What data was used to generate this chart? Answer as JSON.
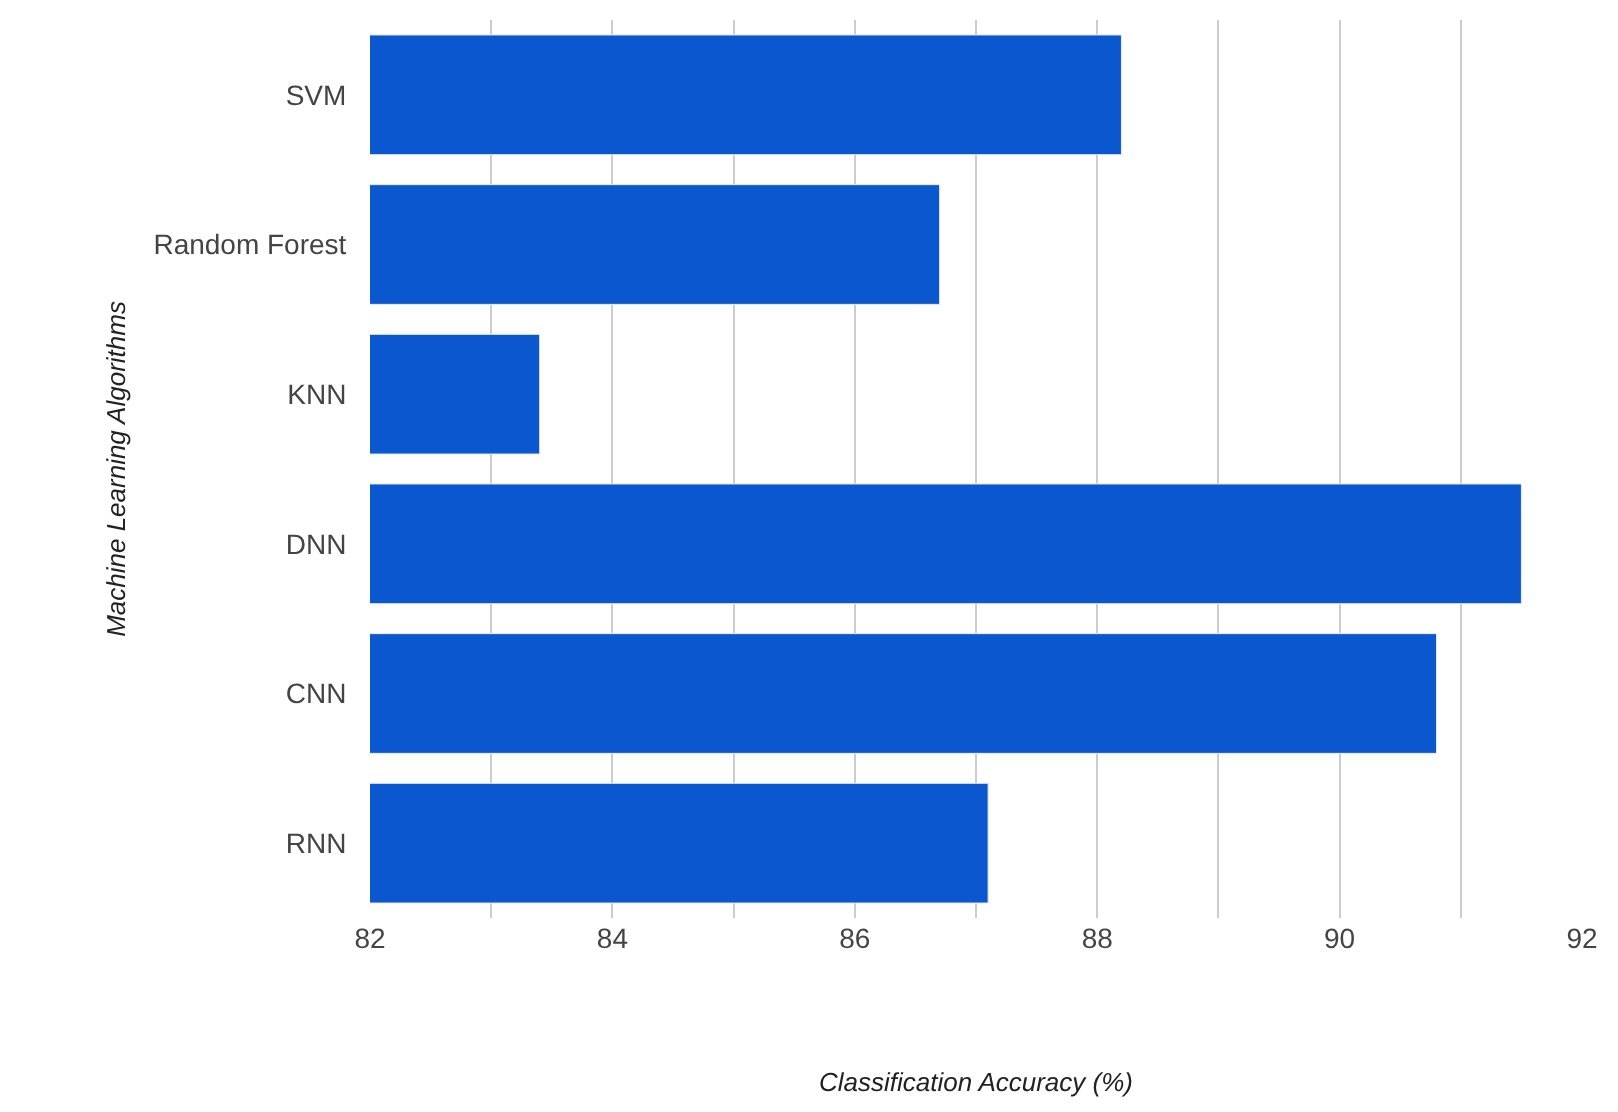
{
  "chart_data": {
    "type": "bar",
    "orientation": "horizontal",
    "xlabel": "Classification Accuracy (%)",
    "ylabel": "Machine Learning Algorithms",
    "categories": [
      "SVM",
      "Random Forest",
      "KNN",
      "DNN",
      "CNN",
      "RNN"
    ],
    "values": [
      88.2,
      86.7,
      83.4,
      91.5,
      90.8,
      87.1
    ],
    "color": "#0b57d0",
    "xlim": [
      82,
      92
    ],
    "xticks": [
      82,
      {
        "value": 83,
        "label": null
      },
      84,
      {
        "value": 85,
        "label": null
      },
      86,
      {
        "value": 87,
        "label": null
      },
      88,
      {
        "value": 89,
        "label": null
      },
      90,
      {
        "value": 91,
        "label": null
      },
      92
    ],
    "grid": "x"
  }
}
